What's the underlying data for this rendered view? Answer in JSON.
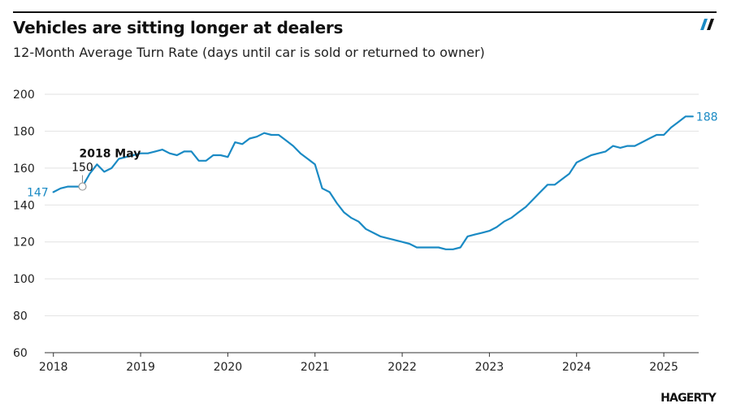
{
  "header": {
    "title": "Vehicles are sitting longer at dealers",
    "subtitle": "12-Month Average Turn Rate (days until car is sold or returned to owner)"
  },
  "footer": {
    "brand": "HAGERTY"
  },
  "colors": {
    "line": "#1a8ac4",
    "grid": "#e2e2e2",
    "axis": "#333333"
  },
  "chart_data": {
    "type": "line",
    "title": "Vehicles are sitting longer at dealers",
    "subtitle": "12-Month Average Turn Rate (days until car is sold or returned to owner)",
    "xlabel": "",
    "ylabel": "",
    "ylim": [
      60,
      200
    ],
    "yticks": [
      60,
      80,
      100,
      120,
      140,
      160,
      180,
      200
    ],
    "xlim": [
      2017.9,
      2025.4
    ],
    "xticks": [
      "2018",
      "2019",
      "2020",
      "2021",
      "2022",
      "2023",
      "2024",
      "2025"
    ],
    "grid": true,
    "series": [
      {
        "name": "12-Month Average Turn Rate",
        "x": [
          2018.0,
          2018.083,
          2018.167,
          2018.25,
          2018.333,
          2018.417,
          2018.5,
          2018.583,
          2018.667,
          2018.75,
          2018.833,
          2018.917,
          2019.0,
          2019.083,
          2019.167,
          2019.25,
          2019.333,
          2019.417,
          2019.5,
          2019.583,
          2019.667,
          2019.75,
          2019.833,
          2019.917,
          2020.0,
          2020.083,
          2020.167,
          2020.25,
          2020.333,
          2020.417,
          2020.5,
          2020.583,
          2020.667,
          2020.75,
          2020.833,
          2020.917,
          2021.0,
          2021.083,
          2021.167,
          2021.25,
          2021.333,
          2021.417,
          2021.5,
          2021.583,
          2021.667,
          2021.75,
          2021.833,
          2021.917,
          2022.0,
          2022.083,
          2022.167,
          2022.25,
          2022.333,
          2022.417,
          2022.5,
          2022.583,
          2022.667,
          2022.75,
          2022.833,
          2022.917,
          2023.0,
          2023.083,
          2023.167,
          2023.25,
          2023.333,
          2023.417,
          2023.5,
          2023.583,
          2023.667,
          2023.75,
          2023.833,
          2023.917,
          2024.0,
          2024.083,
          2024.167,
          2024.25,
          2024.333,
          2024.417,
          2024.5,
          2024.583,
          2024.667,
          2024.75,
          2024.833,
          2024.917,
          2025.0,
          2025.083,
          2025.167,
          2025.25,
          2025.333
        ],
        "values": [
          147,
          149,
          150,
          150,
          150,
          157,
          162,
          158,
          160,
          165,
          166,
          167,
          168,
          168,
          169,
          170,
          168,
          167,
          169,
          169,
          164,
          164,
          167,
          167,
          166,
          174,
          173,
          176,
          177,
          179,
          178,
          178,
          175,
          172,
          168,
          165,
          162,
          149,
          147,
          141,
          136,
          133,
          131,
          127,
          125,
          123,
          122,
          121,
          120,
          119,
          117,
          117,
          117,
          117,
          116,
          116,
          117,
          123,
          124,
          125,
          126,
          128,
          131,
          133,
          136,
          139,
          143,
          147,
          151,
          151,
          154,
          157,
          163,
          165,
          167,
          168,
          169,
          172,
          171,
          172,
          172,
          174,
          176,
          178,
          178,
          182,
          185,
          188,
          188
        ]
      }
    ],
    "annotations": {
      "start_value": "147",
      "end_value": "188",
      "tooltip": {
        "label": "2018 May",
        "value": "150",
        "x": 2018.333,
        "y": 150
      }
    }
  }
}
